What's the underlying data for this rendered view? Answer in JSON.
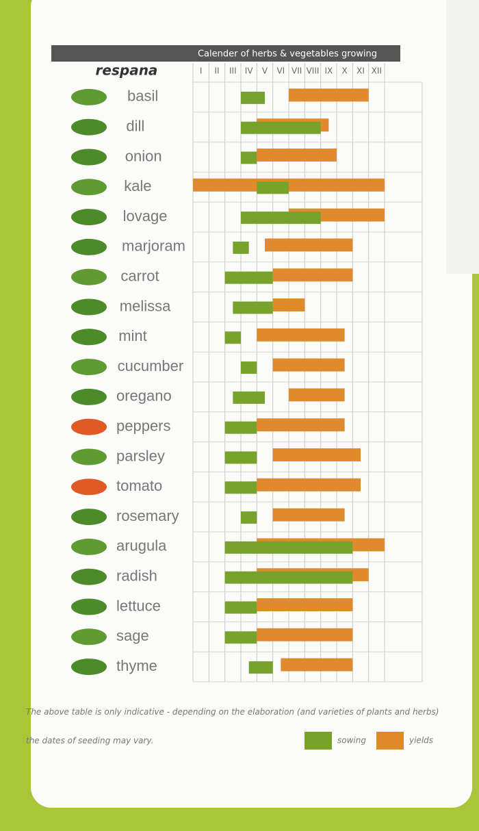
{
  "chart_data": {
    "type": "gantt",
    "title": "Calender of herbs & vegetables growing",
    "brand": "respana",
    "months": [
      "I",
      "II",
      "III",
      "IV",
      "V",
      "VI",
      "VII",
      "VIII",
      "IX",
      "X",
      "XI",
      "XII"
    ],
    "xlim": [
      0,
      12
    ],
    "categories": [
      "basil",
      "dill",
      "onion",
      "kale",
      "lovage",
      "marjoram",
      "carrot",
      "melissa",
      "mint",
      "cucumber",
      "oregano",
      "peppers",
      "parsley",
      "tomato",
      "rosemary",
      "arugula",
      "radish",
      "lettuce",
      "sage",
      "thyme"
    ],
    "series": [
      {
        "name": "yields",
        "color": "#e08a2e",
        "values": [
          [
            6,
            11
          ],
          [
            4,
            8.5
          ],
          [
            4,
            9
          ],
          [
            0,
            12
          ],
          [
            6,
            12
          ],
          [
            4.5,
            10
          ],
          [
            5,
            10
          ],
          [
            5,
            7
          ],
          [
            4,
            9.5
          ],
          [
            5,
            9.5
          ],
          [
            6,
            9.5
          ],
          [
            4,
            9.5
          ],
          [
            5,
            10.5
          ],
          [
            4,
            10.5
          ],
          [
            5,
            9.5
          ],
          [
            4,
            12
          ],
          [
            4,
            11
          ],
          [
            4,
            10
          ],
          [
            4,
            10
          ],
          [
            5.5,
            10
          ]
        ]
      },
      {
        "name": "sowing",
        "color": "#77a22b",
        "values": [
          [
            3,
            4.5
          ],
          [
            3,
            8
          ],
          [
            3,
            4
          ],
          [
            4,
            6
          ],
          [
            3,
            8
          ],
          [
            2.5,
            3.5
          ],
          [
            2,
            5
          ],
          [
            2.5,
            5
          ],
          [
            2,
            3
          ],
          [
            3,
            4
          ],
          [
            2.5,
            4.5
          ],
          [
            2,
            4
          ],
          [
            2,
            4
          ],
          [
            2,
            4
          ],
          [
            3,
            4
          ],
          [
            2,
            10
          ],
          [
            2,
            10
          ],
          [
            2,
            4
          ],
          [
            2,
            4
          ],
          [
            3.5,
            5
          ]
        ]
      }
    ],
    "note": "The above table is only indicative - depending on the elaboration (and varieties of plants and herbs) the dates of seeding may vary."
  }
}
